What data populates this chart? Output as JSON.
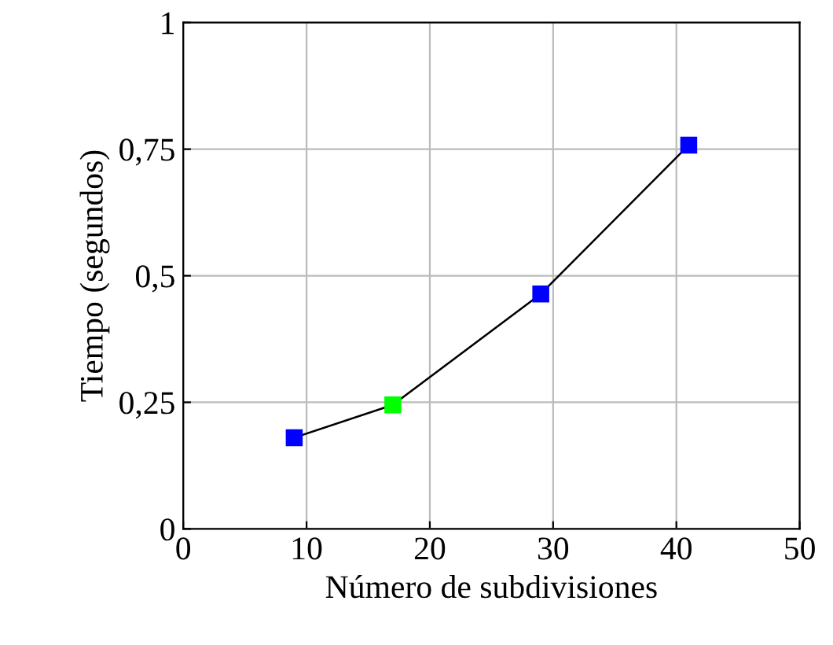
{
  "chart_data": {
    "type": "line",
    "xlabel": "Número de subdivisiones",
    "ylabel": "Tiempo (segundos)",
    "x": [
      9,
      17,
      29,
      41
    ],
    "series": [
      {
        "color": "#000000",
        "colors": [
          "#0000ff",
          "#00ff00",
          "#0000ff",
          "#0000ff"
        ],
        "values": [
          0.18,
          0.245,
          0.464,
          0.758
        ]
      }
    ],
    "xlim": [
      0,
      50
    ],
    "xticks": [
      0,
      10,
      20,
      30,
      40,
      50
    ],
    "ylim": [
      0,
      1
    ],
    "yticks": [
      {
        "value": 0,
        "label": "0"
      },
      {
        "value": 0.25,
        "label": "0,25"
      },
      {
        "value": 0.5,
        "label": "0,5"
      },
      {
        "value": 0.75,
        "label": "0,75"
      },
      {
        "value": 1,
        "label": "1"
      }
    ],
    "grid": true,
    "marker": "square",
    "line_style": "solid"
  }
}
